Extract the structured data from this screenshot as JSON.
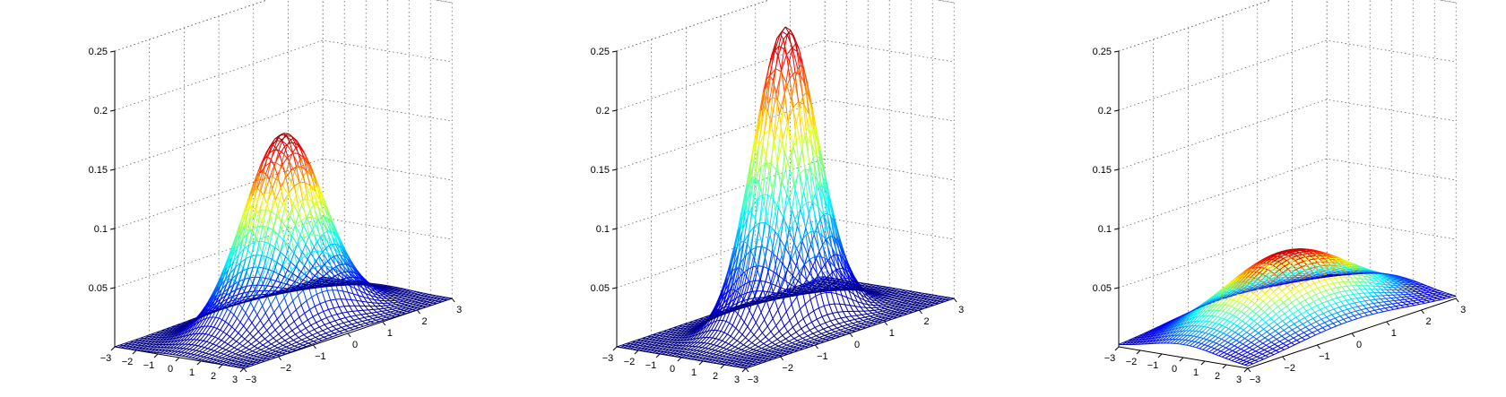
{
  "chart_data": [
    {
      "type": "surface",
      "function": "bivariate-gaussian",
      "x": [
        -3,
        3
      ],
      "y": [
        -3,
        3
      ],
      "zlim": [
        0,
        0.25
      ],
      "peak_z": 0.16,
      "mesh_lines": 41,
      "grid": true,
      "colormap": "jet",
      "x_ticks": [
        "−3",
        "−2",
        "−1",
        "0",
        "1",
        "2",
        "3"
      ],
      "y_ticks": [
        "−3",
        "−2",
        "−1",
        "0",
        "1",
        "2",
        "3"
      ],
      "z_ticks": [
        "0.05",
        "0.1",
        "0.15",
        "0.2",
        "0.25"
      ]
    },
    {
      "type": "surface",
      "function": "bivariate-gaussian",
      "x": [
        -3,
        3
      ],
      "y": [
        -3,
        3
      ],
      "zlim": [
        0,
        0.25
      ],
      "peak_z": 0.25,
      "mesh_lines": 41,
      "grid": true,
      "colormap": "jet",
      "x_ticks": [
        "−3",
        "−2",
        "−1",
        "0",
        "1",
        "2",
        "3"
      ],
      "y_ticks": [
        "−3",
        "−2",
        "−1",
        "0",
        "1",
        "2",
        "3"
      ],
      "z_ticks": [
        "0.05",
        "0.1",
        "0.15",
        "0.2",
        "0.25"
      ]
    },
    {
      "type": "surface",
      "function": "bivariate-gaussian",
      "x": [
        -3,
        3
      ],
      "y": [
        -3,
        3
      ],
      "zlim": [
        0,
        0.25
      ],
      "peak_z": 0.06,
      "mesh_lines": 41,
      "grid": true,
      "colormap": "jet",
      "x_ticks": [
        "−3",
        "−2",
        "−1",
        "0",
        "1",
        "2",
        "3"
      ],
      "y_ticks": [
        "−3",
        "−2",
        "−1",
        "0",
        "1",
        "2",
        "3"
      ],
      "z_ticks": [
        "0.05",
        "0.1",
        "0.15",
        "0.2",
        "0.25"
      ]
    }
  ]
}
